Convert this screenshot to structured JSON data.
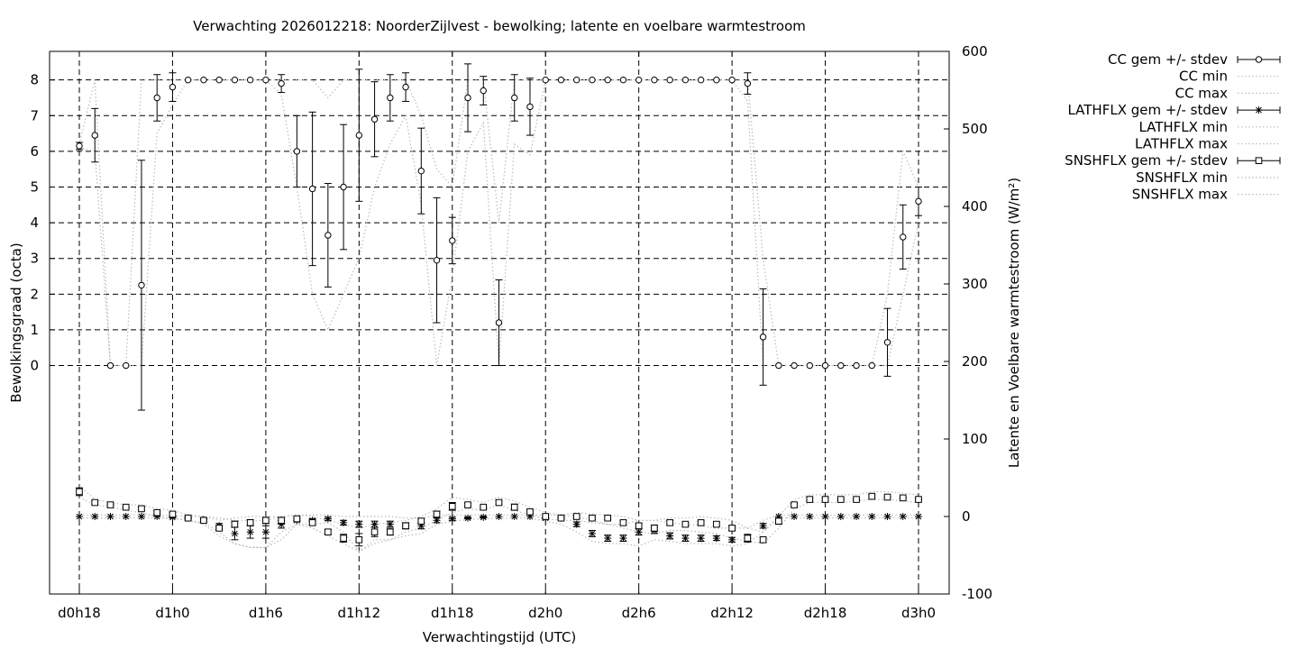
{
  "chart_data": {
    "type": "line",
    "title": "Verwachting 2026012218: NoorderZijlvest - bewolking; latente en voelbare warmtestroom",
    "xlabel": "Verwachtingstijd (UTC)",
    "ylabel": "Bewolkingsgraad (octa)",
    "y2label": "Latente en Voelbare warmtestroom (W/m²)",
    "xlim": [
      18,
      72
    ],
    "ylim": [
      -6.4,
      8.8
    ],
    "y2lim": [
      -100,
      600
    ],
    "x_ticks": [
      {
        "x": 18,
        "label": "d0h18"
      },
      {
        "x": 24,
        "label": "d1h0"
      },
      {
        "x": 30,
        "label": "d1h6"
      },
      {
        "x": 36,
        "label": "d1h12"
      },
      {
        "x": 42,
        "label": "d1h18"
      },
      {
        "x": 48,
        "label": "d2h0"
      },
      {
        "x": 54,
        "label": "d2h6"
      },
      {
        "x": 60,
        "label": "d2h12"
      },
      {
        "x": 66,
        "label": "d2h18"
      },
      {
        "x": 72,
        "label": "d3h0"
      }
    ],
    "y_ticks": [
      0,
      1,
      2,
      3,
      4,
      5,
      6,
      7,
      8
    ],
    "y2_ticks": [
      -100,
      0,
      100,
      200,
      300,
      400,
      500,
      600
    ],
    "grid": true,
    "legend_position": "top-right, outside plot",
    "legend": [
      {
        "label": "CC gem +/- stdev",
        "style": "errorbar",
        "marker": "circle"
      },
      {
        "label": "CC min",
        "style": "dotted"
      },
      {
        "label": "CC max",
        "style": "dotted"
      },
      {
        "label": "LATHFLX gem +/- stdev",
        "style": "errorbar",
        "marker": "star"
      },
      {
        "label": "LATHFLX min",
        "style": "dotted"
      },
      {
        "label": "LATHFLX max",
        "style": "dotted"
      },
      {
        "label": "SNSHFLX gem +/- stdev",
        "style": "errorbar",
        "marker": "square"
      },
      {
        "label": "SNSHFLX min",
        "style": "dotted"
      },
      {
        "label": "SNSHFLX max",
        "style": "dotted"
      }
    ],
    "colors": {
      "marks": "#000000",
      "envelope": "#bbbbbb",
      "grid": "#000000"
    },
    "series": [
      {
        "name": "CC",
        "axis": "y",
        "x": [
          18,
          19,
          20,
          21,
          22,
          23,
          24,
          25,
          26,
          27,
          28,
          29,
          30,
          31,
          32,
          33,
          34,
          35,
          36,
          37,
          38,
          39,
          40,
          41,
          42,
          43,
          44,
          45,
          46,
          47,
          48,
          49,
          50,
          51,
          52,
          53,
          54,
          55,
          56,
          57,
          58,
          59,
          60,
          61,
          62,
          63,
          64,
          65,
          66,
          67,
          68,
          69,
          70,
          71,
          72
        ],
        "mean": [
          6.15,
          6.45,
          0,
          0,
          2.25,
          7.5,
          7.8,
          8,
          8,
          8,
          8,
          8,
          8,
          7.9,
          6.0,
          4.95,
          3.65,
          5.0,
          6.45,
          6.9,
          7.5,
          7.8,
          5.45,
          2.95,
          3.5,
          7.5,
          7.7,
          1.2,
          7.5,
          7.25,
          8,
          8,
          8,
          8,
          8,
          8,
          8,
          8,
          8,
          8,
          8,
          8,
          8,
          7.9,
          0.8,
          0,
          0,
          0,
          0,
          0,
          0,
          0,
          0.65,
          3.6,
          4.6
        ],
        "stdev": [
          0.1,
          0.75,
          0,
          0,
          3.5,
          0.65,
          0.4,
          0,
          0,
          0,
          0,
          0,
          0,
          0.25,
          1.0,
          2.15,
          1.45,
          1.75,
          1.85,
          1.05,
          0.65,
          0.4,
          1.2,
          1.75,
          0.65,
          0.95,
          0.4,
          1.2,
          0.65,
          0.8,
          0,
          0,
          0,
          0,
          0,
          0,
          0,
          0,
          0,
          0,
          0,
          0,
          0,
          0.3,
          1.35,
          0,
          0,
          0,
          0,
          0,
          0,
          0,
          0.95,
          0.9,
          0.4
        ],
        "min": [
          6.1,
          6.0,
          0,
          0,
          0,
          6.5,
          7.3,
          8,
          8,
          8,
          8,
          8,
          8,
          7.6,
          5.0,
          2.0,
          1.0,
          2.0,
          3.0,
          5.0,
          6.2,
          7.0,
          4.5,
          0,
          2.5,
          6.0,
          6.8,
          0,
          6.2,
          5.9,
          8,
          8,
          8,
          8,
          8,
          8,
          8,
          8,
          8,
          8,
          8,
          8,
          8,
          7.4,
          0,
          0,
          0,
          0,
          0,
          0,
          0,
          0,
          0,
          2.0,
          4.0
        ],
        "max": [
          6.2,
          8,
          0,
          0,
          8,
          8,
          8,
          8,
          8,
          8,
          8,
          8,
          8,
          8,
          8,
          8,
          7.5,
          8,
          8,
          8,
          8,
          8,
          7,
          5.5,
          5,
          8,
          8,
          4,
          8,
          8,
          8,
          8,
          8,
          8,
          8,
          8,
          8,
          8,
          8,
          8,
          8,
          8,
          8,
          8,
          3,
          0,
          0,
          0,
          0,
          0,
          0,
          0,
          2,
          6,
          5
        ]
      },
      {
        "name": "LATHFLX",
        "axis": "y2",
        "x": [
          18,
          19,
          20,
          21,
          22,
          23,
          24,
          25,
          26,
          27,
          28,
          29,
          30,
          31,
          32,
          33,
          34,
          35,
          36,
          37,
          38,
          39,
          40,
          41,
          42,
          43,
          44,
          45,
          46,
          47,
          48,
          49,
          50,
          51,
          52,
          53,
          54,
          55,
          56,
          57,
          58,
          59,
          60,
          61,
          62,
          63,
          64,
          65,
          66,
          67,
          68,
          69,
          70,
          71,
          72
        ],
        "mean": [
          0,
          0,
          0,
          0,
          0,
          0,
          -1,
          -2,
          -4,
          -12,
          -22,
          -20,
          -20,
          -10,
          -5,
          -5,
          -3,
          -8,
          -10,
          -10,
          -10,
          -12,
          -12,
          -5,
          -3,
          -2,
          -1,
          0,
          0,
          0,
          -2,
          -2,
          -10,
          -22,
          -28,
          -28,
          -20,
          -18,
          -25,
          -28,
          -28,
          -28,
          -30,
          -28,
          -12,
          0,
          0,
          0,
          0,
          0,
          0,
          0,
          0,
          0,
          0
        ],
        "stdev": [
          0,
          0,
          0,
          0,
          0,
          0,
          1,
          1,
          2,
          3,
          8,
          8,
          8,
          5,
          2,
          2,
          2,
          3,
          4,
          4,
          4,
          4,
          4,
          3,
          2,
          1,
          1,
          0,
          0,
          0,
          1,
          2,
          3,
          4,
          4,
          4,
          4,
          4,
          4,
          4,
          4,
          3,
          3,
          4,
          3,
          0,
          0,
          0,
          0,
          0,
          0,
          0,
          0,
          0,
          0
        ],
        "min": [
          -2,
          -2,
          -2,
          -2,
          -2,
          -2,
          -3,
          -5,
          -8,
          -20,
          -35,
          -40,
          -40,
          -20,
          -10,
          -10,
          -8,
          -20,
          -45,
          -30,
          -30,
          -25,
          -22,
          -10,
          -6,
          -4,
          -3,
          -2,
          -2,
          -2,
          -6,
          -10,
          -20,
          -32,
          -35,
          -35,
          -38,
          -30,
          -32,
          -35,
          -35,
          -35,
          -38,
          -35,
          -20,
          -2,
          -2,
          -2,
          -2,
          -2,
          -2,
          -2,
          -2,
          -2,
          -2
        ],
        "max": [
          2,
          2,
          2,
          2,
          2,
          2,
          1,
          0,
          0,
          -2,
          -5,
          -5,
          -5,
          0,
          2,
          2,
          2,
          0,
          0,
          0,
          0,
          -2,
          -2,
          2,
          2,
          2,
          2,
          2,
          2,
          2,
          2,
          2,
          0,
          -5,
          -10,
          -10,
          -5,
          -5,
          -8,
          -10,
          -12,
          -15,
          -15,
          -15,
          -5,
          2,
          2,
          2,
          2,
          2,
          2,
          2,
          2,
          2,
          2
        ]
      },
      {
        "name": "SNSHFLX",
        "axis": "y2",
        "x": [
          18,
          19,
          20,
          21,
          22,
          23,
          24,
          25,
          26,
          27,
          28,
          29,
          30,
          31,
          32,
          33,
          34,
          35,
          36,
          37,
          38,
          39,
          40,
          41,
          42,
          43,
          44,
          45,
          46,
          47,
          48,
          49,
          50,
          51,
          52,
          53,
          54,
          55,
          56,
          57,
          58,
          59,
          60,
          61,
          62,
          63,
          64,
          65,
          66,
          67,
          68,
          69,
          70,
          71,
          72
        ],
        "mean": [
          32,
          18,
          15,
          12,
          10,
          5,
          3,
          -2,
          -5,
          -15,
          -10,
          -8,
          -5,
          -5,
          -3,
          -8,
          -20,
          -28,
          -30,
          -20,
          -20,
          -12,
          -6,
          3,
          13,
          15,
          12,
          18,
          12,
          6,
          0,
          -2,
          0,
          -2,
          -2,
          -8,
          -12,
          -15,
          -8,
          -10,
          -8,
          -10,
          -15,
          -28,
          -30,
          -6,
          15,
          22,
          22,
          22,
          22,
          26,
          25,
          24,
          22
        ],
        "stdev": [
          5,
          2,
          1,
          1,
          2,
          2,
          2,
          1,
          2,
          3,
          4,
          4,
          4,
          4,
          2,
          3,
          3,
          5,
          8,
          6,
          4,
          3,
          3,
          4,
          5,
          2,
          1,
          2,
          4,
          2,
          2,
          1,
          2,
          2,
          2,
          3,
          3,
          4,
          3,
          2,
          2,
          2,
          3,
          5,
          3,
          4,
          2,
          2,
          2,
          1,
          1,
          2,
          1,
          1,
          1
        ],
        "min": [
          25,
          15,
          12,
          8,
          5,
          0,
          -2,
          -5,
          -10,
          -25,
          -35,
          -40,
          -40,
          -30,
          -10,
          -15,
          -25,
          -35,
          -45,
          -35,
          -30,
          -20,
          -15,
          -5,
          5,
          10,
          8,
          15,
          8,
          2,
          -3,
          -5,
          -5,
          -8,
          -10,
          -15,
          -20,
          -22,
          -18,
          -18,
          -20,
          -22,
          -28,
          -32,
          -35,
          -15,
          10,
          18,
          18,
          18,
          20,
          22,
          22,
          20,
          18
        ],
        "max": [
          40,
          22,
          18,
          15,
          15,
          10,
          8,
          2,
          0,
          -5,
          -2,
          0,
          0,
          0,
          2,
          0,
          -5,
          -10,
          -15,
          -10,
          -8,
          -5,
          0,
          10,
          25,
          22,
          18,
          25,
          20,
          12,
          5,
          2,
          5,
          3,
          2,
          0,
          -5,
          -5,
          -2,
          -2,
          0,
          -2,
          -5,
          -15,
          -20,
          0,
          22,
          28,
          28,
          28,
          28,
          32,
          32,
          30,
          28
        ]
      }
    ]
  }
}
